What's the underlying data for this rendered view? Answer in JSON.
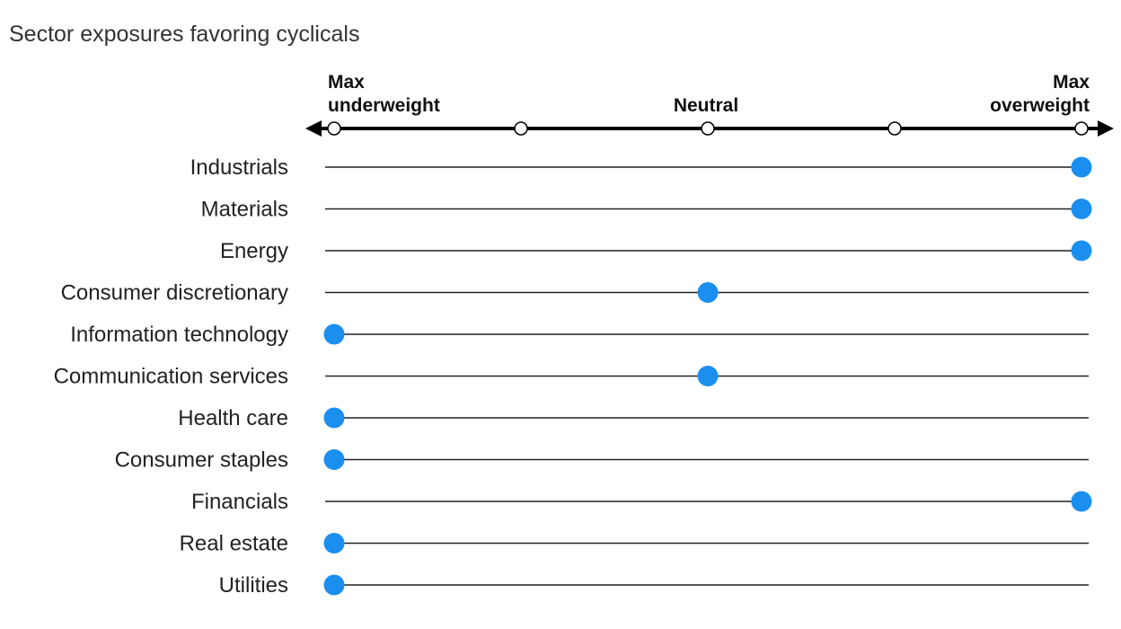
{
  "title": "Sector exposures favoring cyclicals",
  "colors": {
    "marker": "#1a8ff0",
    "axis": "#000000",
    "line": "#222222"
  },
  "chart_data": {
    "type": "scatter",
    "title": "Sector exposures favoring cyclicals",
    "scale_labels": [
      {
        "lines": [
          "Max",
          "underweight"
        ],
        "value": -2
      },
      {
        "lines": [
          "Neutral"
        ],
        "value": 0
      },
      {
        "lines": [
          "Max",
          "overweight"
        ],
        "value": 2
      }
    ],
    "xlim": [
      -2,
      2
    ],
    "ticks": [
      -2,
      -1,
      0,
      1,
      2
    ],
    "categories": [
      "Industrials",
      "Materials",
      "Energy",
      "Consumer discretionary",
      "Information technology",
      "Communication services",
      "Health care",
      "Consumer staples",
      "Financials",
      "Real estate",
      "Utilities"
    ],
    "values": [
      2,
      2,
      2,
      0,
      -2,
      0,
      -2,
      -2,
      2,
      -2,
      -2
    ],
    "grid": false,
    "legend": "none"
  }
}
